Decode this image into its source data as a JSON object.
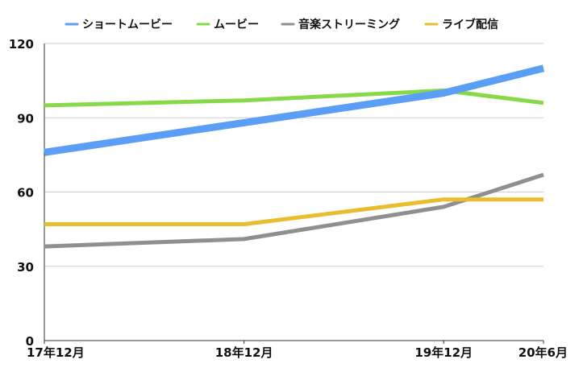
{
  "chart_data": {
    "type": "line",
    "categories": [
      "17年12月",
      "18年12月",
      "19年12月",
      "20年6月"
    ],
    "x_positions": [
      0,
      1,
      2,
      2.5
    ],
    "ylim": [
      0,
      120
    ],
    "yticks": [
      0,
      30,
      60,
      90,
      120
    ],
    "grid": true,
    "legend_position": "top",
    "series": [
      {
        "name": "ショートムービー",
        "color": "#5a9ef5",
        "width": 9,
        "values": [
          76,
          88,
          100,
          110
        ]
      },
      {
        "name": "ムービー",
        "color": "#88d94a",
        "width": 5,
        "values": [
          95,
          97,
          101,
          96
        ]
      },
      {
        "name": "音楽ストリーミング",
        "color": "#8f8f8f",
        "width": 5,
        "values": [
          38,
          41,
          54,
          67
        ]
      },
      {
        "name": "ライブ配信",
        "color": "#e8bd2f",
        "width": 5,
        "values": [
          47,
          47,
          57,
          57
        ]
      }
    ]
  }
}
